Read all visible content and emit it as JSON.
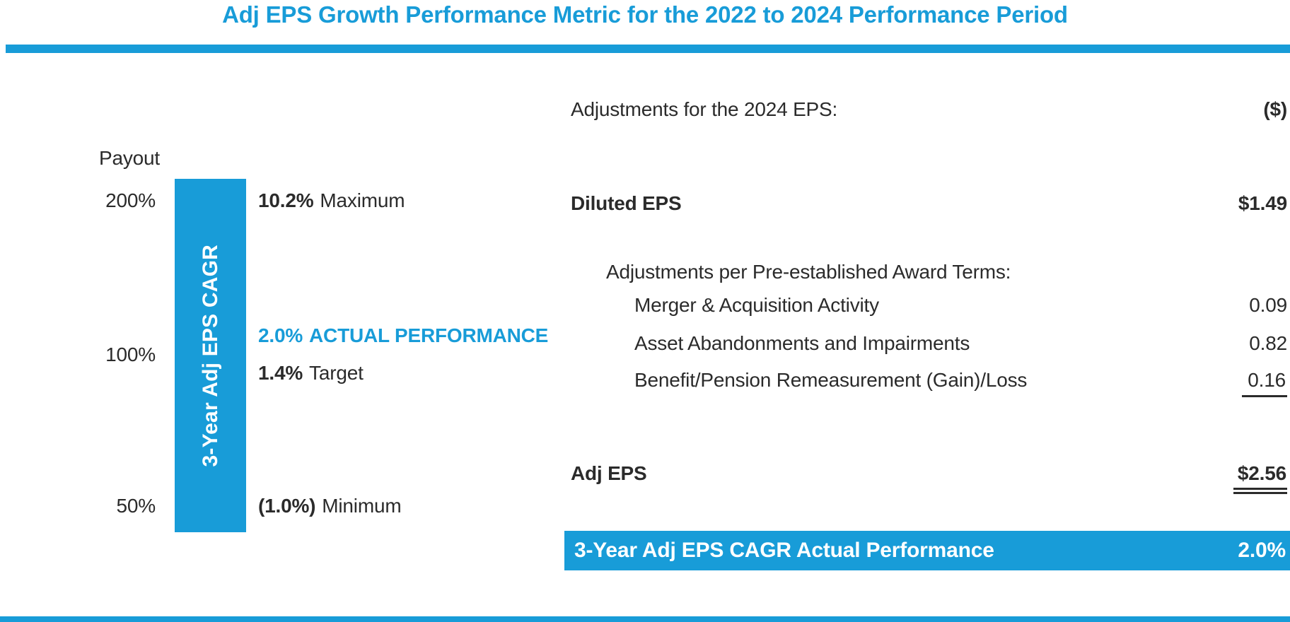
{
  "title": "Adj EPS Growth Performance Metric for the 2022 to 2024 Performance Period",
  "colors": {
    "accent_blue": "#189CD8",
    "text_dark": "#2B2B2B",
    "bar_label_text": "#FFFFFF"
  },
  "chart_data": [
    {
      "type": "bar",
      "name": "payout-scale",
      "axis_label": "Payout",
      "bar_label": "3-Year Adj EPS CAGR",
      "ticks": [
        "200%",
        "100%",
        "50%"
      ],
      "markers": [
        {
          "value": "10.2%",
          "label": "Maximum",
          "payout": "200%",
          "highlight": false
        },
        {
          "value": "2.0%",
          "label": "ACTUAL PERFORMANCE",
          "payout": null,
          "highlight": true
        },
        {
          "value": "1.4%",
          "label": "Target",
          "payout": "100%",
          "highlight": false
        },
        {
          "value": "(1.0%)",
          "label": "Minimum",
          "payout": "50%",
          "highlight": false
        }
      ]
    },
    {
      "type": "table",
      "name": "eps-adjustments",
      "header": {
        "label": "Adjustments for the 2024 EPS:",
        "unit": "($)"
      },
      "rows": [
        {
          "label": "Diluted EPS",
          "value": "$1.49",
          "bold": true,
          "indent": 0,
          "underline": "none"
        },
        {
          "label": "Adjustments per Pre-established Award Terms:",
          "value": "",
          "bold": false,
          "indent": 1,
          "underline": "none"
        },
        {
          "label": "Merger & Acquisition Activity",
          "value": "0.09",
          "bold": false,
          "indent": 2,
          "underline": "none"
        },
        {
          "label": "Asset Abandonments and Impairments",
          "value": "0.82",
          "bold": false,
          "indent": 2,
          "underline": "none"
        },
        {
          "label": "Benefit/Pension Remeasurement (Gain)/Loss",
          "value": "0.16",
          "bold": false,
          "indent": 2,
          "underline": "single"
        },
        {
          "label": "Adj EPS",
          "value": "$2.56",
          "bold": true,
          "indent": 0,
          "underline": "double"
        }
      ],
      "footer": {
        "label": "3-Year Adj EPS CAGR Actual Performance",
        "value": "2.0%"
      }
    }
  ]
}
